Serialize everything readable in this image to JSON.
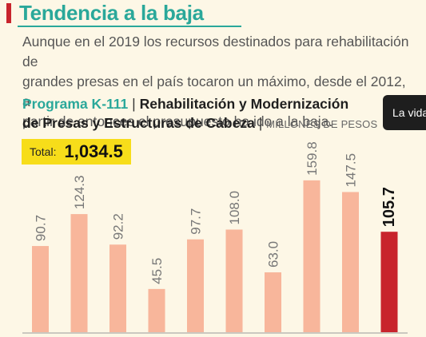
{
  "headline": "Tendencia a la baja",
  "intro": "Aunque en el 2019 los recursos destinados para rehabilitación de\ngrandes presas en el país tocaron un máximo, desde el 2012, a\npartir de entonces el presupuesto ha ido a la baja.",
  "chart_title": {
    "program": "Programa K-111",
    "separator": " | ",
    "line1_rest": "Rehabilitación y Modernización",
    "line2": "de Presas y Estructuras de Cabeza",
    "unit": "MILLONES DE PESOS"
  },
  "total": {
    "label": "Total:",
    "value": "1,034.5"
  },
  "tooltip": {
    "text": "La vida"
  },
  "colors": {
    "headline": "#2aa89a",
    "accent": "#c8242c",
    "bar": "#f8b69b",
    "bar_highlight": "#c8242c",
    "total_box": "#f7dd1a",
    "background": "#fdf7e6"
  },
  "chart_data": {
    "type": "bar",
    "values": [
      90.7,
      124.3,
      92.2,
      45.5,
      97.7,
      108.0,
      63.0,
      159.8,
      147.5,
      105.7
    ],
    "value_labels": [
      "90.7",
      "124.3",
      "92.2",
      "45.5",
      "97.7",
      "108.0",
      "63.0",
      "159.8",
      "147.5",
      "105.7"
    ],
    "highlight_index": 9,
    "ylim": [
      0,
      185
    ],
    "grid": false,
    "title": "Programa K-111 | Rehabilitación y Modernización de Presas y Estructuras de Cabeza",
    "ylabel": "MILLONES DE PESOS"
  }
}
